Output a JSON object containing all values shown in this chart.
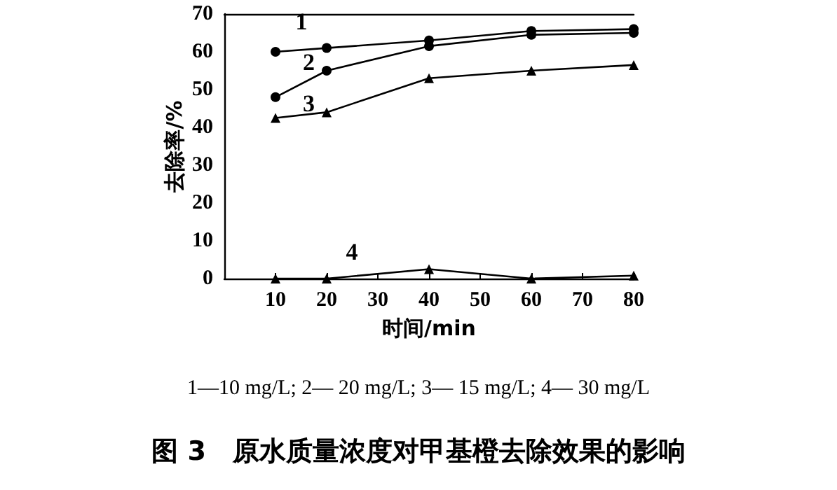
{
  "chart_data": {
    "type": "line",
    "title": "图 3　原水质量浓度对甲基橙去除效果的影响",
    "xlabel": "时间/min",
    "ylabel": "去除率/%",
    "x": [
      10,
      20,
      40,
      60,
      80
    ],
    "series": [
      {
        "name": "1",
        "color": "#000000",
        "marker": "circle",
        "values": [
          60,
          61,
          63,
          65.5,
          66
        ]
      },
      {
        "name": "2",
        "color": "#000000",
        "marker": "circle",
        "values": [
          48,
          55,
          61.5,
          64.5,
          65
        ]
      },
      {
        "name": "3",
        "color": "#000000",
        "marker": "triangle",
        "values": [
          42.5,
          44,
          53,
          55,
          56.5
        ]
      },
      {
        "name": "4",
        "color": "#000000",
        "marker": "triangle",
        "values": [
          0,
          0,
          2.5,
          0,
          0.8
        ]
      }
    ],
    "xlim": [
      0,
      80
    ],
    "xticks": [
      10,
      20,
      30,
      40,
      50,
      60,
      70,
      80
    ],
    "ylim": [
      0,
      70
    ],
    "yticks": [
      0,
      10,
      20,
      30,
      40,
      50,
      60,
      70
    ],
    "annotations": [
      "1—10 mg/L; 2— 20 mg/L; 3— 15 mg/L; 4— 30 mg/L"
    ],
    "grid": false,
    "legend": false,
    "line_style": "solid"
  }
}
